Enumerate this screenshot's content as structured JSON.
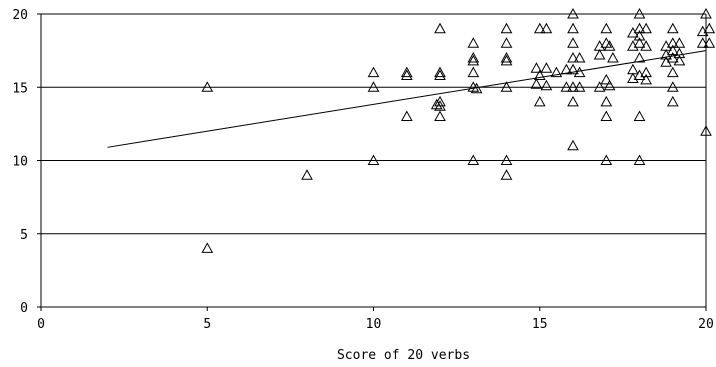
{
  "chart_data": {
    "type": "scatter",
    "title": "",
    "xlabel": "Score of 20 verbs",
    "ylabel": "",
    "xlim": [
      0,
      20
    ],
    "ylim": [
      0,
      20
    ],
    "x_ticks": [
      "0",
      "5",
      "10",
      "15",
      "20"
    ],
    "y_ticks": [
      "0",
      "5",
      "10",
      "15",
      "20"
    ],
    "grid": "horizontal",
    "marker": "open-triangle",
    "series": [
      {
        "points": [
          [
            5,
            15
          ],
          [
            5,
            4
          ],
          [
            8,
            9
          ],
          [
            10,
            16
          ],
          [
            10,
            15
          ],
          [
            10,
            10
          ],
          [
            11,
            16
          ],
          [
            11,
            15.8
          ],
          [
            11,
            13
          ],
          [
            12,
            19
          ],
          [
            12,
            16
          ],
          [
            12,
            15.8
          ],
          [
            12,
            14
          ],
          [
            11.9,
            13.8
          ],
          [
            12,
            13.7
          ],
          [
            12,
            13
          ],
          [
            13,
            18
          ],
          [
            13,
            17
          ],
          [
            13,
            16.8
          ],
          [
            13,
            16
          ],
          [
            13,
            15
          ],
          [
            13.1,
            14.9
          ],
          [
            13,
            10
          ],
          [
            14,
            19
          ],
          [
            14,
            18
          ],
          [
            14,
            17
          ],
          [
            14,
            16.8
          ],
          [
            14,
            15
          ],
          [
            14,
            10
          ],
          [
            14,
            9
          ],
          [
            15,
            19
          ],
          [
            15.2,
            19
          ],
          [
            14.9,
            16.3
          ],
          [
            15.2,
            16.3
          ],
          [
            15,
            15.8
          ],
          [
            15.5,
            16
          ],
          [
            14.9,
            15.2
          ],
          [
            15.2,
            15.1
          ],
          [
            15,
            14
          ],
          [
            16,
            20
          ],
          [
            16,
            19
          ],
          [
            16,
            18
          ],
          [
            16,
            17
          ],
          [
            16.2,
            17
          ],
          [
            16,
            16.2
          ],
          [
            15.8,
            16.2
          ],
          [
            16.2,
            16
          ],
          [
            16,
            15
          ],
          [
            15.8,
            15
          ],
          [
            16.2,
            15
          ],
          [
            16,
            14
          ],
          [
            16,
            11
          ],
          [
            17,
            19
          ],
          [
            17,
            18
          ],
          [
            16.8,
            17.8
          ],
          [
            17.1,
            17.8
          ],
          [
            16.8,
            17.2
          ],
          [
            17.2,
            17
          ],
          [
            17,
            15.5
          ],
          [
            16.8,
            15
          ],
          [
            17.1,
            15.1
          ],
          [
            17,
            14
          ],
          [
            17,
            13
          ],
          [
            17,
            10
          ],
          [
            18,
            20
          ],
          [
            18,
            19
          ],
          [
            18.2,
            19
          ],
          [
            17.8,
            18.7
          ],
          [
            18,
            18.5
          ],
          [
            18,
            18
          ],
          [
            17.8,
            17.8
          ],
          [
            18.2,
            17.8
          ],
          [
            18,
            17
          ],
          [
            17.8,
            16.2
          ],
          [
            18.2,
            16
          ],
          [
            18,
            15.8
          ],
          [
            17.8,
            15.6
          ],
          [
            18.2,
            15.5
          ],
          [
            18,
            13
          ],
          [
            18,
            10
          ],
          [
            19,
            19
          ],
          [
            19,
            18
          ],
          [
            19.2,
            18
          ],
          [
            18.8,
            17.8
          ],
          [
            19,
            17.5
          ],
          [
            19.2,
            17.3
          ],
          [
            18.8,
            17.2
          ],
          [
            19,
            17
          ],
          [
            19.2,
            16.8
          ],
          [
            18.8,
            16.7
          ],
          [
            19,
            16
          ],
          [
            19,
            15
          ],
          [
            19,
            14
          ],
          [
            20,
            20
          ],
          [
            20.1,
            19
          ],
          [
            19.9,
            18.8
          ],
          [
            19.9,
            18
          ],
          [
            20.1,
            18
          ],
          [
            20,
            12
          ]
        ]
      }
    ],
    "trendline": {
      "x": [
        2,
        20
      ],
      "y": [
        10.9,
        17.5
      ]
    }
  },
  "axis_labels": {
    "x_title": "Score of 20 verbs"
  }
}
